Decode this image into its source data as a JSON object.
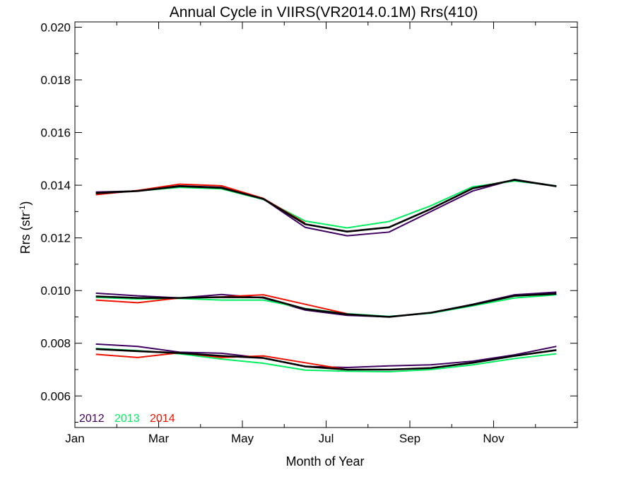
{
  "chart_data": {
    "type": "line",
    "title": "Annual Cycle in VIIRS(VR2014.0.1M) Rrs(410)",
    "xlabel": "Month of Year",
    "ylabel_prefix": "Rrs (str",
    "ylabel_sup": "-1",
    "ylabel_suffix": ")",
    "xlim": [
      1,
      13
    ],
    "ylim": [
      0.0048,
      0.0202
    ],
    "x_ticks": [
      {
        "value": 1,
        "label": "Jan"
      },
      {
        "value": 3,
        "label": "Mar"
      },
      {
        "value": 5,
        "label": "May"
      },
      {
        "value": 7,
        "label": "Jul"
      },
      {
        "value": 9,
        "label": "Sep"
      },
      {
        "value": 11,
        "label": "Nov"
      }
    ],
    "y_ticks": [
      {
        "value": 0.006,
        "label": "0.006"
      },
      {
        "value": 0.008,
        "label": "0.008"
      },
      {
        "value": 0.01,
        "label": "0.010"
      },
      {
        "value": 0.012,
        "label": "0.012"
      },
      {
        "value": 0.014,
        "label": "0.014"
      },
      {
        "value": 0.016,
        "label": "0.016"
      },
      {
        "value": 0.018,
        "label": "0.018"
      },
      {
        "value": 0.02,
        "label": "0.020"
      }
    ],
    "x": [
      1.5,
      2.5,
      3.5,
      4.5,
      5.5,
      6.5,
      7.5,
      8.5,
      9.5,
      10.5,
      11.5,
      12.5
    ],
    "groups": [
      {
        "series": [
          {
            "name": "2012",
            "color": "#400060",
            "values": [
              0.01374,
              0.01378,
              0.01398,
              0.01392,
              0.01348,
              0.0124,
              0.01208,
              0.01222,
              0.013,
              0.01378,
              0.01422,
              0.01396
            ]
          },
          {
            "name": "2013",
            "color": "#00ee60",
            "values": [
              0.01368,
              0.01378,
              0.01392,
              0.01386,
              0.01346,
              0.01264,
              0.01238,
              0.01262,
              0.01322,
              0.01394,
              0.01416,
              0.01398
            ]
          },
          {
            "name": "2014",
            "color": "#ee1100",
            "values": [
              0.01364,
              0.0138,
              0.01404,
              0.01398,
              0.0135,
              0.01256,
              null,
              null,
              null,
              null,
              null,
              null
            ]
          },
          {
            "name": "",
            "color": "#000000",
            "values": [
              0.0137,
              0.01378,
              0.01396,
              0.0139,
              0.01348,
              0.01252,
              0.01224,
              0.0124,
              0.0131,
              0.01388,
              0.0142,
              0.01396
            ]
          }
        ]
      },
      {
        "series": [
          {
            "name": "2012",
            "color": "#400060",
            "values": [
              0.0099,
              0.0098,
              0.00972,
              0.00985,
              0.00972,
              0.00926,
              0.00906,
              0.009,
              0.00916,
              0.00948,
              0.00984,
              0.00994
            ]
          },
          {
            "name": "2013",
            "color": "#00ee60",
            "values": [
              0.00974,
              0.00968,
              0.0097,
              0.00964,
              0.00964,
              0.00932,
              0.00912,
              0.00902,
              0.00914,
              0.00942,
              0.00972,
              0.00984
            ]
          },
          {
            "name": "2014",
            "color": "#ee1100",
            "values": [
              0.00964,
              0.00954,
              0.00972,
              0.00976,
              0.00984,
              0.00948,
              0.00912,
              null,
              null,
              null,
              null,
              null
            ]
          },
          {
            "name": "",
            "color": "#000000",
            "values": [
              0.00978,
              0.00972,
              0.00972,
              0.00975,
              0.00974,
              0.0093,
              0.0091,
              0.009,
              0.00916,
              0.00946,
              0.0098,
              0.00988
            ]
          }
        ]
      },
      {
        "series": [
          {
            "name": "2012",
            "color": "#400060",
            "values": [
              0.00797,
              0.00788,
              0.00766,
              0.00762,
              0.00744,
              0.00712,
              0.00708,
              0.00714,
              0.00718,
              0.00732,
              0.00756,
              0.00788
            ]
          },
          {
            "name": "2013",
            "color": "#00ee60",
            "values": [
              0.0078,
              0.00772,
              0.0076,
              0.0074,
              0.00724,
              0.00698,
              0.00694,
              0.00692,
              0.007,
              0.00718,
              0.00742,
              0.0076
            ]
          },
          {
            "name": "2014",
            "color": "#ee1100",
            "values": [
              0.00758,
              0.00746,
              0.00764,
              0.00746,
              0.00752,
              0.00726,
              0.007,
              null,
              null,
              null,
              null,
              null
            ]
          },
          {
            "name": "",
            "color": "#000000",
            "values": [
              0.00778,
              0.0077,
              0.00763,
              0.00752,
              0.00744,
              0.00712,
              0.007,
              0.007,
              0.00706,
              0.00726,
              0.00752,
              0.00774
            ]
          }
        ]
      }
    ],
    "legend": [
      {
        "label": "2012",
        "color": "#400060"
      },
      {
        "label": "2013",
        "color": "#00ee60"
      },
      {
        "label": "2014",
        "color": "#ee1100"
      }
    ],
    "legend_position": "bottom-left",
    "grid": false
  }
}
